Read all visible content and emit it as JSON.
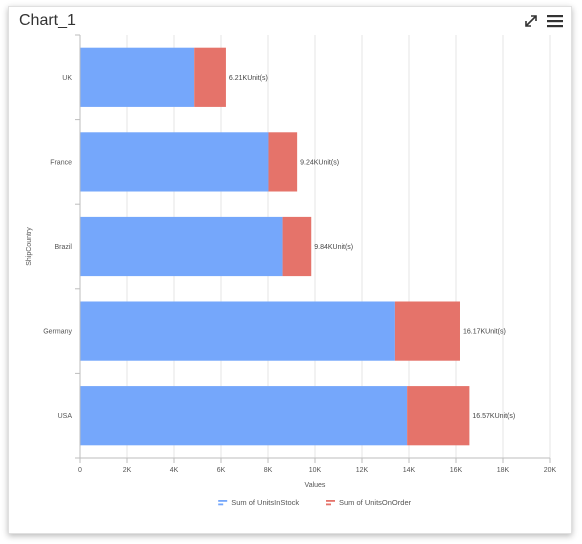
{
  "header": {
    "title": "Chart_1",
    "icons": {
      "expand": "expand-icon",
      "menu": "hamburger-menu-icon"
    }
  },
  "chart_data": {
    "type": "bar",
    "orientation": "horizontal",
    "stacked": true,
    "categories": [
      "UK",
      "France",
      "Brazil",
      "Germany",
      "USA"
    ],
    "series": [
      {
        "name": "Sum of UnitsInStock",
        "color": "#75a7fb",
        "values": [
          4860,
          8020,
          8620,
          13400,
          13920
        ]
      },
      {
        "name": "Sum of UnitsOnOrder",
        "color": "#e5736a",
        "values": [
          1350,
          1220,
          1220,
          2770,
          2650
        ]
      }
    ],
    "totals": [
      6210,
      9240,
      9840,
      16170,
      16570
    ],
    "total_labels": [
      "6.21KUnit(s)",
      "9.24KUnit(s)",
      "9.84KUnit(s)",
      "16.17KUnit(s)",
      "16.57KUnit(s)"
    ],
    "xlim": [
      0,
      20000
    ],
    "xticks": [
      0,
      2000,
      4000,
      6000,
      8000,
      10000,
      12000,
      14000,
      16000,
      18000,
      20000
    ],
    "xtick_labels": [
      "0",
      "2K",
      "4K",
      "6K",
      "8K",
      "10K",
      "12K",
      "14K",
      "16K",
      "18K",
      "20K"
    ],
    "xlabel": "Values",
    "ylabel": "ShipCountry",
    "grid": true,
    "legend_position": "bottom"
  }
}
